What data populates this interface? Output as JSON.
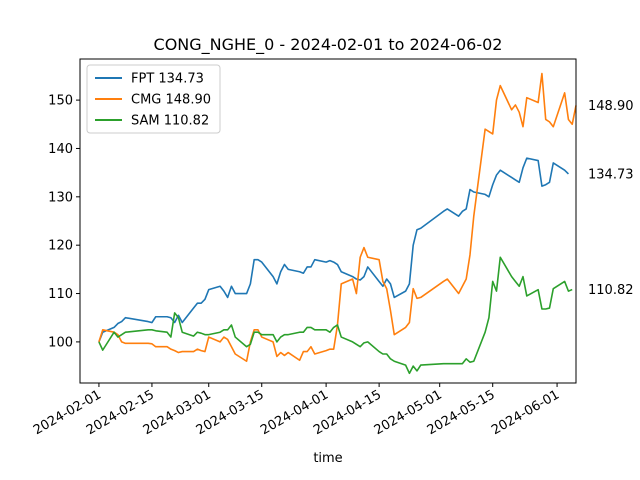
{
  "chart_data": {
    "type": "line",
    "title": "CONG_NGHE_0 - 2024-02-01 to 2024-06-02",
    "xlabel": "time",
    "ylabel": "",
    "xlim": [
      "2024-01-27",
      "2024-06-06"
    ],
    "ylim": [
      91.5,
      158.5
    ],
    "x_ticks": [
      "2024-02-01",
      "2024-02-15",
      "2024-03-01",
      "2024-03-15",
      "2024-04-01",
      "2024-04-15",
      "2024-05-01",
      "2024-05-15",
      "2024-06-01"
    ],
    "y_ticks": [
      100,
      110,
      120,
      130,
      140,
      150
    ],
    "grid": false,
    "legend_position": "top-left",
    "series": [
      {
        "name": "FPT 134.73",
        "color": "#1f77b4",
        "end_label": "134.73",
        "points": [
          [
            "2024-02-01",
            100.0
          ],
          [
            "2024-02-02",
            102.0
          ],
          [
            "2024-02-05",
            103.0
          ],
          [
            "2024-02-06",
            103.8
          ],
          [
            "2024-02-07",
            104.2
          ],
          [
            "2024-02-08",
            105.0
          ],
          [
            "2024-02-14",
            104.2
          ],
          [
            "2024-02-15",
            104.0
          ],
          [
            "2024-02-16",
            105.2
          ],
          [
            "2024-02-19",
            105.2
          ],
          [
            "2024-02-20",
            105.0
          ],
          [
            "2024-02-21",
            104.0
          ],
          [
            "2024-02-22",
            105.5
          ],
          [
            "2024-02-23",
            104.0
          ],
          [
            "2024-02-26",
            107.0
          ],
          [
            "2024-02-27",
            108.0
          ],
          [
            "2024-02-28",
            108.0
          ],
          [
            "2024-02-29",
            108.8
          ],
          [
            "2024-03-01",
            110.8
          ],
          [
            "2024-03-04",
            111.5
          ],
          [
            "2024-03-05",
            110.5
          ],
          [
            "2024-03-06",
            109.2
          ],
          [
            "2024-03-07",
            111.5
          ],
          [
            "2024-03-08",
            110.0
          ],
          [
            "2024-03-11",
            110.0
          ],
          [
            "2024-03-12",
            112.0
          ],
          [
            "2024-03-13",
            117.0
          ],
          [
            "2024-03-14",
            117.0
          ],
          [
            "2024-03-15",
            116.5
          ],
          [
            "2024-03-18",
            113.5
          ],
          [
            "2024-03-19",
            112.0
          ],
          [
            "2024-03-20",
            114.5
          ],
          [
            "2024-03-21",
            116.0
          ],
          [
            "2024-03-22",
            115.0
          ],
          [
            "2024-03-25",
            114.5
          ],
          [
            "2024-03-26",
            114.2
          ],
          [
            "2024-03-27",
            115.5
          ],
          [
            "2024-03-28",
            115.5
          ],
          [
            "2024-03-29",
            117.0
          ],
          [
            "2024-04-01",
            116.5
          ],
          [
            "2024-04-02",
            116.8
          ],
          [
            "2024-04-03",
            116.5
          ],
          [
            "2024-04-04",
            116.0
          ],
          [
            "2024-04-05",
            114.5
          ],
          [
            "2024-04-08",
            113.5
          ],
          [
            "2024-04-09",
            113.0
          ],
          [
            "2024-04-10",
            112.8
          ],
          [
            "2024-04-11",
            113.5
          ],
          [
            "2024-04-12",
            115.5
          ],
          [
            "2024-04-15",
            112.5
          ],
          [
            "2024-04-16",
            111.5
          ],
          [
            "2024-04-17",
            113.0
          ],
          [
            "2024-04-18",
            112.0
          ],
          [
            "2024-04-19",
            109.2
          ],
          [
            "2024-04-22",
            110.5
          ],
          [
            "2024-04-23",
            112.0
          ],
          [
            "2024-04-24",
            120.0
          ],
          [
            "2024-04-25",
            123.2
          ],
          [
            "2024-04-26",
            123.5
          ],
          [
            "2024-05-02",
            127.0
          ],
          [
            "2024-05-03",
            127.5
          ],
          [
            "2024-05-06",
            126.0
          ],
          [
            "2024-05-07",
            127.0
          ],
          [
            "2024-05-08",
            127.5
          ],
          [
            "2024-05-09",
            131.5
          ],
          [
            "2024-05-10",
            131.0
          ],
          [
            "2024-05-13",
            130.5
          ],
          [
            "2024-05-14",
            130.0
          ],
          [
            "2024-05-15",
            132.5
          ],
          [
            "2024-05-16",
            134.5
          ],
          [
            "2024-05-17",
            135.5
          ],
          [
            "2024-05-20",
            134.0
          ],
          [
            "2024-05-21",
            133.5
          ],
          [
            "2024-05-22",
            133.0
          ],
          [
            "2024-05-23",
            136.0
          ],
          [
            "2024-05-24",
            138.0
          ],
          [
            "2024-05-27",
            137.5
          ],
          [
            "2024-05-28",
            132.2
          ],
          [
            "2024-05-29",
            132.5
          ],
          [
            "2024-05-30",
            133.0
          ],
          [
            "2024-05-31",
            137.0
          ],
          [
            "2024-06-03",
            135.5
          ],
          [
            "2024-06-04",
            134.73
          ]
        ]
      },
      {
        "name": "CMG 148.90",
        "color": "#ff7f0e",
        "end_label": "148.90",
        "points": [
          [
            "2024-02-01",
            100.0
          ],
          [
            "2024-02-02",
            102.5
          ],
          [
            "2024-02-05",
            102.0
          ],
          [
            "2024-02-06",
            101.5
          ],
          [
            "2024-02-07",
            100.0
          ],
          [
            "2024-02-08",
            99.7
          ],
          [
            "2024-02-14",
            99.7
          ],
          [
            "2024-02-15",
            99.6
          ],
          [
            "2024-02-16",
            99.0
          ],
          [
            "2024-02-19",
            99.0
          ],
          [
            "2024-02-20",
            98.5
          ],
          [
            "2024-02-21",
            98.2
          ],
          [
            "2024-02-22",
            97.8
          ],
          [
            "2024-02-23",
            98.0
          ],
          [
            "2024-02-26",
            98.0
          ],
          [
            "2024-02-27",
            98.5
          ],
          [
            "2024-02-28",
            98.2
          ],
          [
            "2024-02-29",
            98.0
          ],
          [
            "2024-03-01",
            101.0
          ],
          [
            "2024-03-04",
            100.0
          ],
          [
            "2024-03-05",
            101.0
          ],
          [
            "2024-03-06",
            100.5
          ],
          [
            "2024-03-07",
            99.0
          ],
          [
            "2024-03-08",
            97.5
          ],
          [
            "2024-03-11",
            96.0
          ],
          [
            "2024-03-12",
            100.0
          ],
          [
            "2024-03-13",
            102.5
          ],
          [
            "2024-03-14",
            102.5
          ],
          [
            "2024-03-15",
            101.0
          ],
          [
            "2024-03-18",
            100.0
          ],
          [
            "2024-03-19",
            97.0
          ],
          [
            "2024-03-20",
            97.8
          ],
          [
            "2024-03-21",
            97.2
          ],
          [
            "2024-03-22",
            97.8
          ],
          [
            "2024-03-25",
            96.2
          ],
          [
            "2024-03-26",
            98.0
          ],
          [
            "2024-03-27",
            98.0
          ],
          [
            "2024-03-28",
            99.0
          ],
          [
            "2024-03-29",
            97.5
          ],
          [
            "2024-04-01",
            98.2
          ],
          [
            "2024-04-02",
            98.5
          ],
          [
            "2024-04-03",
            98.5
          ],
          [
            "2024-04-04",
            103.5
          ],
          [
            "2024-04-05",
            112.0
          ],
          [
            "2024-04-08",
            113.0
          ],
          [
            "2024-04-09",
            110.0
          ],
          [
            "2024-04-10",
            117.5
          ],
          [
            "2024-04-11",
            119.5
          ],
          [
            "2024-04-12",
            117.5
          ],
          [
            "2024-04-15",
            117.0
          ],
          [
            "2024-04-16",
            112.5
          ],
          [
            "2024-04-17",
            111.0
          ],
          [
            "2024-04-18",
            106.5
          ],
          [
            "2024-04-19",
            101.5
          ],
          [
            "2024-04-22",
            103.0
          ],
          [
            "2024-04-23",
            104.0
          ],
          [
            "2024-04-24",
            111.0
          ],
          [
            "2024-04-25",
            109.0
          ],
          [
            "2024-04-26",
            109.2
          ],
          [
            "2024-05-02",
            112.5
          ],
          [
            "2024-05-03",
            113.0
          ],
          [
            "2024-05-06",
            110.0
          ],
          [
            "2024-05-07",
            111.5
          ],
          [
            "2024-05-08",
            113.0
          ],
          [
            "2024-05-09",
            118.0
          ],
          [
            "2024-05-10",
            126.0
          ],
          [
            "2024-05-13",
            144.0
          ],
          [
            "2024-05-14",
            143.5
          ],
          [
            "2024-05-15",
            143.0
          ],
          [
            "2024-05-16",
            150.0
          ],
          [
            "2024-05-17",
            153.0
          ],
          [
            "2024-05-20",
            148.0
          ],
          [
            "2024-05-21",
            149.0
          ],
          [
            "2024-05-22",
            147.5
          ],
          [
            "2024-05-23",
            144.5
          ],
          [
            "2024-05-24",
            150.5
          ],
          [
            "2024-05-27",
            149.5
          ],
          [
            "2024-05-28",
            155.5
          ],
          [
            "2024-05-29",
            146.0
          ],
          [
            "2024-05-30",
            145.5
          ],
          [
            "2024-05-31",
            144.5
          ],
          [
            "2024-06-03",
            151.5
          ],
          [
            "2024-06-04",
            146.0
          ],
          [
            "2024-06-05",
            145.0
          ],
          [
            "2024-06-06",
            148.9
          ]
        ]
      },
      {
        "name": "SAM 110.82",
        "color": "#2ca02c",
        "end_label": "110.82",
        "points": [
          [
            "2024-02-01",
            100.0
          ],
          [
            "2024-02-02",
            98.3
          ],
          [
            "2024-02-05",
            102.0
          ],
          [
            "2024-02-06",
            101.0
          ],
          [
            "2024-02-07",
            101.5
          ],
          [
            "2024-02-08",
            102.0
          ],
          [
            "2024-02-14",
            102.5
          ],
          [
            "2024-02-15",
            102.5
          ],
          [
            "2024-02-16",
            102.3
          ],
          [
            "2024-02-19",
            102.0
          ],
          [
            "2024-02-20",
            101.0
          ],
          [
            "2024-02-21",
            106.0
          ],
          [
            "2024-02-22",
            105.0
          ],
          [
            "2024-02-23",
            102.0
          ],
          [
            "2024-02-26",
            101.2
          ],
          [
            "2024-02-27",
            102.0
          ],
          [
            "2024-02-28",
            101.8
          ],
          [
            "2024-02-29",
            101.5
          ],
          [
            "2024-03-01",
            101.5
          ],
          [
            "2024-03-04",
            102.0
          ],
          [
            "2024-03-05",
            102.5
          ],
          [
            "2024-03-06",
            102.5
          ],
          [
            "2024-03-07",
            103.5
          ],
          [
            "2024-03-08",
            101.0
          ],
          [
            "2024-03-11",
            99.0
          ],
          [
            "2024-03-12",
            99.5
          ],
          [
            "2024-03-13",
            102.0
          ],
          [
            "2024-03-14",
            102.0
          ],
          [
            "2024-03-15",
            101.5
          ],
          [
            "2024-03-18",
            101.5
          ],
          [
            "2024-03-19",
            100.0
          ],
          [
            "2024-03-20",
            101.0
          ],
          [
            "2024-03-21",
            101.5
          ],
          [
            "2024-03-22",
            101.5
          ],
          [
            "2024-03-25",
            102.0
          ],
          [
            "2024-03-26",
            102.0
          ],
          [
            "2024-03-27",
            103.0
          ],
          [
            "2024-03-28",
            103.0
          ],
          [
            "2024-03-29",
            102.5
          ],
          [
            "2024-04-01",
            102.5
          ],
          [
            "2024-04-02",
            102.0
          ],
          [
            "2024-04-03",
            103.0
          ],
          [
            "2024-04-04",
            103.5
          ],
          [
            "2024-04-05",
            101.0
          ],
          [
            "2024-04-08",
            100.0
          ],
          [
            "2024-04-09",
            99.5
          ],
          [
            "2024-04-10",
            99.0
          ],
          [
            "2024-04-11",
            99.8
          ],
          [
            "2024-04-12",
            100.0
          ],
          [
            "2024-04-15",
            98.0
          ],
          [
            "2024-04-16",
            97.5
          ],
          [
            "2024-04-17",
            97.5
          ],
          [
            "2024-04-18",
            96.5
          ],
          [
            "2024-04-19",
            96.0
          ],
          [
            "2024-04-22",
            95.2
          ],
          [
            "2024-04-23",
            93.5
          ],
          [
            "2024-04-24",
            95.0
          ],
          [
            "2024-04-25",
            94.0
          ],
          [
            "2024-04-26",
            95.2
          ],
          [
            "2024-05-02",
            95.5
          ],
          [
            "2024-05-03",
            95.5
          ],
          [
            "2024-05-06",
            95.5
          ],
          [
            "2024-05-07",
            95.5
          ],
          [
            "2024-05-08",
            96.5
          ],
          [
            "2024-05-09",
            95.8
          ],
          [
            "2024-05-10",
            96.0
          ],
          [
            "2024-05-13",
            102.0
          ],
          [
            "2024-05-14",
            105.0
          ],
          [
            "2024-05-15",
            112.5
          ],
          [
            "2024-05-16",
            110.5
          ],
          [
            "2024-05-17",
            117.5
          ],
          [
            "2024-05-20",
            113.5
          ],
          [
            "2024-05-21",
            112.5
          ],
          [
            "2024-05-22",
            111.5
          ],
          [
            "2024-05-23",
            113.5
          ],
          [
            "2024-05-24",
            109.5
          ],
          [
            "2024-05-27",
            110.8
          ],
          [
            "2024-05-28",
            106.8
          ],
          [
            "2024-05-29",
            106.8
          ],
          [
            "2024-05-30",
            107.0
          ],
          [
            "2024-05-31",
            111.0
          ],
          [
            "2024-06-03",
            112.5
          ],
          [
            "2024-06-04",
            110.5
          ],
          [
            "2024-06-05",
            110.82
          ]
        ]
      }
    ]
  }
}
